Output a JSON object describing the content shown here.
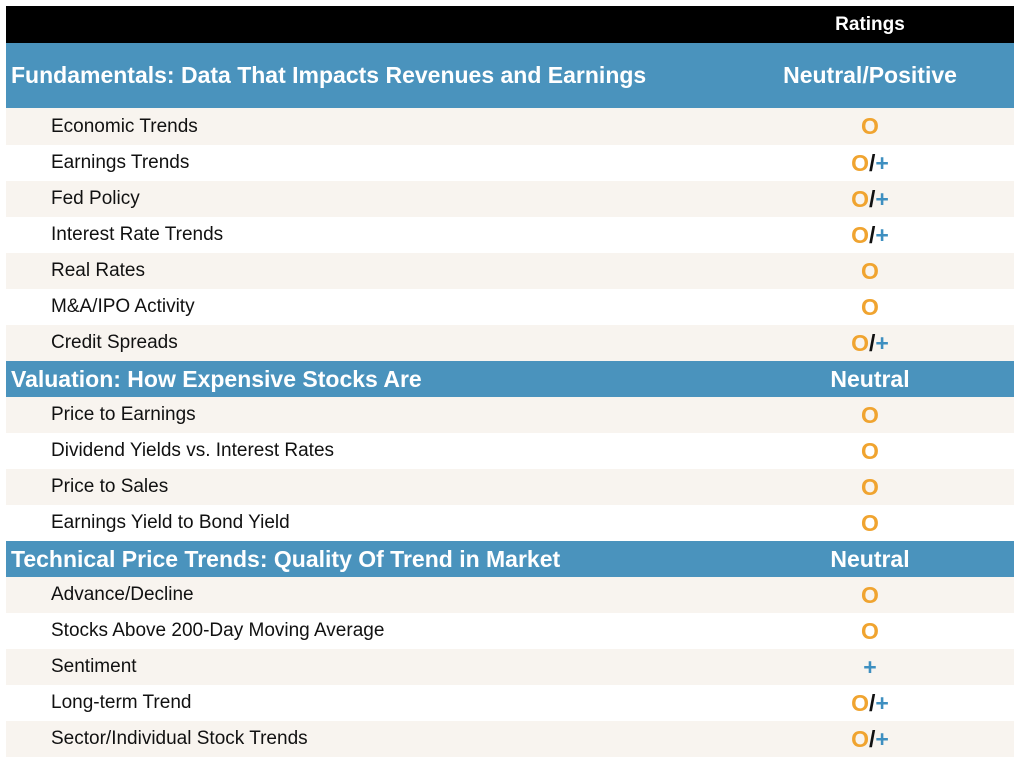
{
  "header": {
    "ratings_label": "Ratings"
  },
  "colors": {
    "section_bg": "#4a93bd",
    "header_bg": "#000000",
    "row_odd_bg": "#f8f4ef",
    "neutral_symbol": "#f0a430",
    "positive_symbol": "#3e8fc0"
  },
  "sections": [
    {
      "title": "Fundamentals: Data That Impacts Revenues and Earnings",
      "rating": "Neutral/Positive",
      "rows": [
        {
          "label": "Economic Trends",
          "rating": "O"
        },
        {
          "label": "Earnings Trends",
          "rating": "O/+"
        },
        {
          "label": "Fed Policy",
          "rating": "O/+"
        },
        {
          "label": "Interest Rate Trends",
          "rating": "O/+"
        },
        {
          "label": "Real Rates",
          "rating": "O"
        },
        {
          "label": "M&A/IPO Activity",
          "rating": "O"
        },
        {
          "label": "Credit Spreads",
          "rating": "O/+"
        }
      ]
    },
    {
      "title": "Valuation: How Expensive Stocks Are",
      "rating": "Neutral",
      "rows": [
        {
          "label": "Price to Earnings",
          "rating": "O"
        },
        {
          "label": "Dividend Yields vs. Interest Rates",
          "rating": "O"
        },
        {
          "label": "Price to Sales",
          "rating": "O"
        },
        {
          "label": "Earnings Yield to Bond Yield",
          "rating": "O"
        }
      ]
    },
    {
      "title": "Technical Price Trends: Quality Of Trend in Market",
      "rating": "Neutral",
      "rows": [
        {
          "label": "Advance/Decline",
          "rating": "O"
        },
        {
          "label": "Stocks Above 200-Day Moving Average",
          "rating": "O"
        },
        {
          "label": "Sentiment",
          "rating": "+"
        },
        {
          "label": "Long-term Trend",
          "rating": "O/+"
        },
        {
          "label": "Sector/Individual Stock Trends",
          "rating": "O/+"
        }
      ]
    }
  ]
}
